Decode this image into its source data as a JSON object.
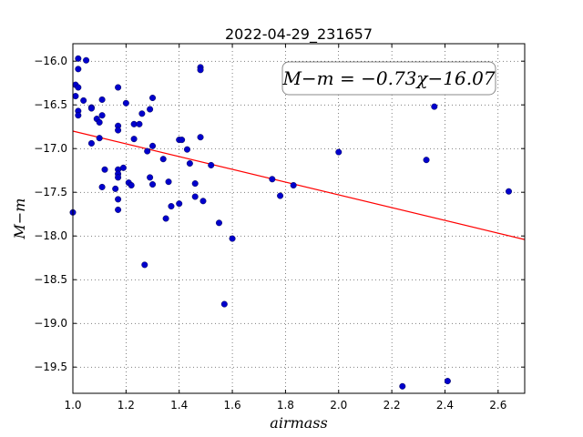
{
  "chart_data": {
    "type": "scatter",
    "title": "2022-04-29_231657",
    "xlabel": "airmass",
    "ylabel": "M−m",
    "xlim": [
      1.0,
      2.7
    ],
    "ylim": [
      -19.8,
      -15.8
    ],
    "y_inverted": true,
    "grid": true,
    "x_ticks": [
      "1.0",
      "1.2",
      "1.4",
      "1.6",
      "1.8",
      "2.0",
      "2.2",
      "2.4",
      "2.6"
    ],
    "y_ticks": [
      "−16.0",
      "−16.5",
      "−17.0",
      "−17.5",
      "−18.0",
      "−18.5",
      "−19.0",
      "−19.5"
    ],
    "annotation": "M−m = −0.73χ−16.07",
    "fit": {
      "slope": -0.73,
      "intercept": -16.07,
      "color": "#ff0000"
    },
    "point_color": "#0000cc",
    "points": [
      [
        1.0,
        -17.73
      ],
      [
        1.01,
        -16.27
      ],
      [
        1.01,
        -16.4
      ],
      [
        1.02,
        -16.3
      ],
      [
        1.02,
        -16.57
      ],
      [
        1.02,
        -16.62
      ],
      [
        1.02,
        -15.97
      ],
      [
        1.02,
        -16.09
      ],
      [
        1.04,
        -16.45
      ],
      [
        1.05,
        -15.99
      ],
      [
        1.07,
        -16.53
      ],
      [
        1.07,
        -16.54
      ],
      [
        1.07,
        -16.94
      ],
      [
        1.09,
        -16.66
      ],
      [
        1.1,
        -16.7
      ],
      [
        1.1,
        -16.88
      ],
      [
        1.11,
        -16.62
      ],
      [
        1.11,
        -16.44
      ],
      [
        1.11,
        -17.44
      ],
      [
        1.12,
        -17.24
      ],
      [
        1.16,
        -17.46
      ],
      [
        1.17,
        -17.24
      ],
      [
        1.17,
        -17.29
      ],
      [
        1.17,
        -17.33
      ],
      [
        1.17,
        -17.58
      ],
      [
        1.17,
        -17.7
      ],
      [
        1.17,
        -16.3
      ],
      [
        1.17,
        -16.74
      ],
      [
        1.17,
        -16.79
      ],
      [
        1.19,
        -17.22
      ],
      [
        1.2,
        -16.48
      ],
      [
        1.21,
        -17.39
      ],
      [
        1.22,
        -17.42
      ],
      [
        1.23,
        -16.89
      ],
      [
        1.23,
        -16.72
      ],
      [
        1.25,
        -16.72
      ],
      [
        1.26,
        -16.6
      ],
      [
        1.27,
        -18.33
      ],
      [
        1.28,
        -17.03
      ],
      [
        1.29,
        -16.55
      ],
      [
        1.29,
        -17.33
      ],
      [
        1.3,
        -17.41
      ],
      [
        1.3,
        -16.97
      ],
      [
        1.3,
        -16.42
      ],
      [
        1.34,
        -17.12
      ],
      [
        1.35,
        -17.8
      ],
      [
        1.36,
        -17.38
      ],
      [
        1.37,
        -17.66
      ],
      [
        1.4,
        -16.9
      ],
      [
        1.4,
        -17.63
      ],
      [
        1.41,
        -16.9
      ],
      [
        1.43,
        -17.01
      ],
      [
        1.44,
        -17.17
      ],
      [
        1.46,
        -17.55
      ],
      [
        1.46,
        -17.4
      ],
      [
        1.48,
        -16.87
      ],
      [
        1.48,
        -16.07
      ],
      [
        1.48,
        -16.1
      ],
      [
        1.49,
        -17.6
      ],
      [
        1.52,
        -17.19
      ],
      [
        1.55,
        -17.85
      ],
      [
        1.57,
        -18.78
      ],
      [
        1.6,
        -18.03
      ],
      [
        1.75,
        -17.35
      ],
      [
        1.78,
        -17.54
      ],
      [
        1.83,
        -17.42
      ],
      [
        2.0,
        -17.04
      ],
      [
        2.24,
        -19.72
      ],
      [
        2.33,
        -17.13
      ],
      [
        2.36,
        -16.52
      ],
      [
        2.41,
        -19.66
      ],
      [
        2.64,
        -17.49
      ]
    ]
  }
}
